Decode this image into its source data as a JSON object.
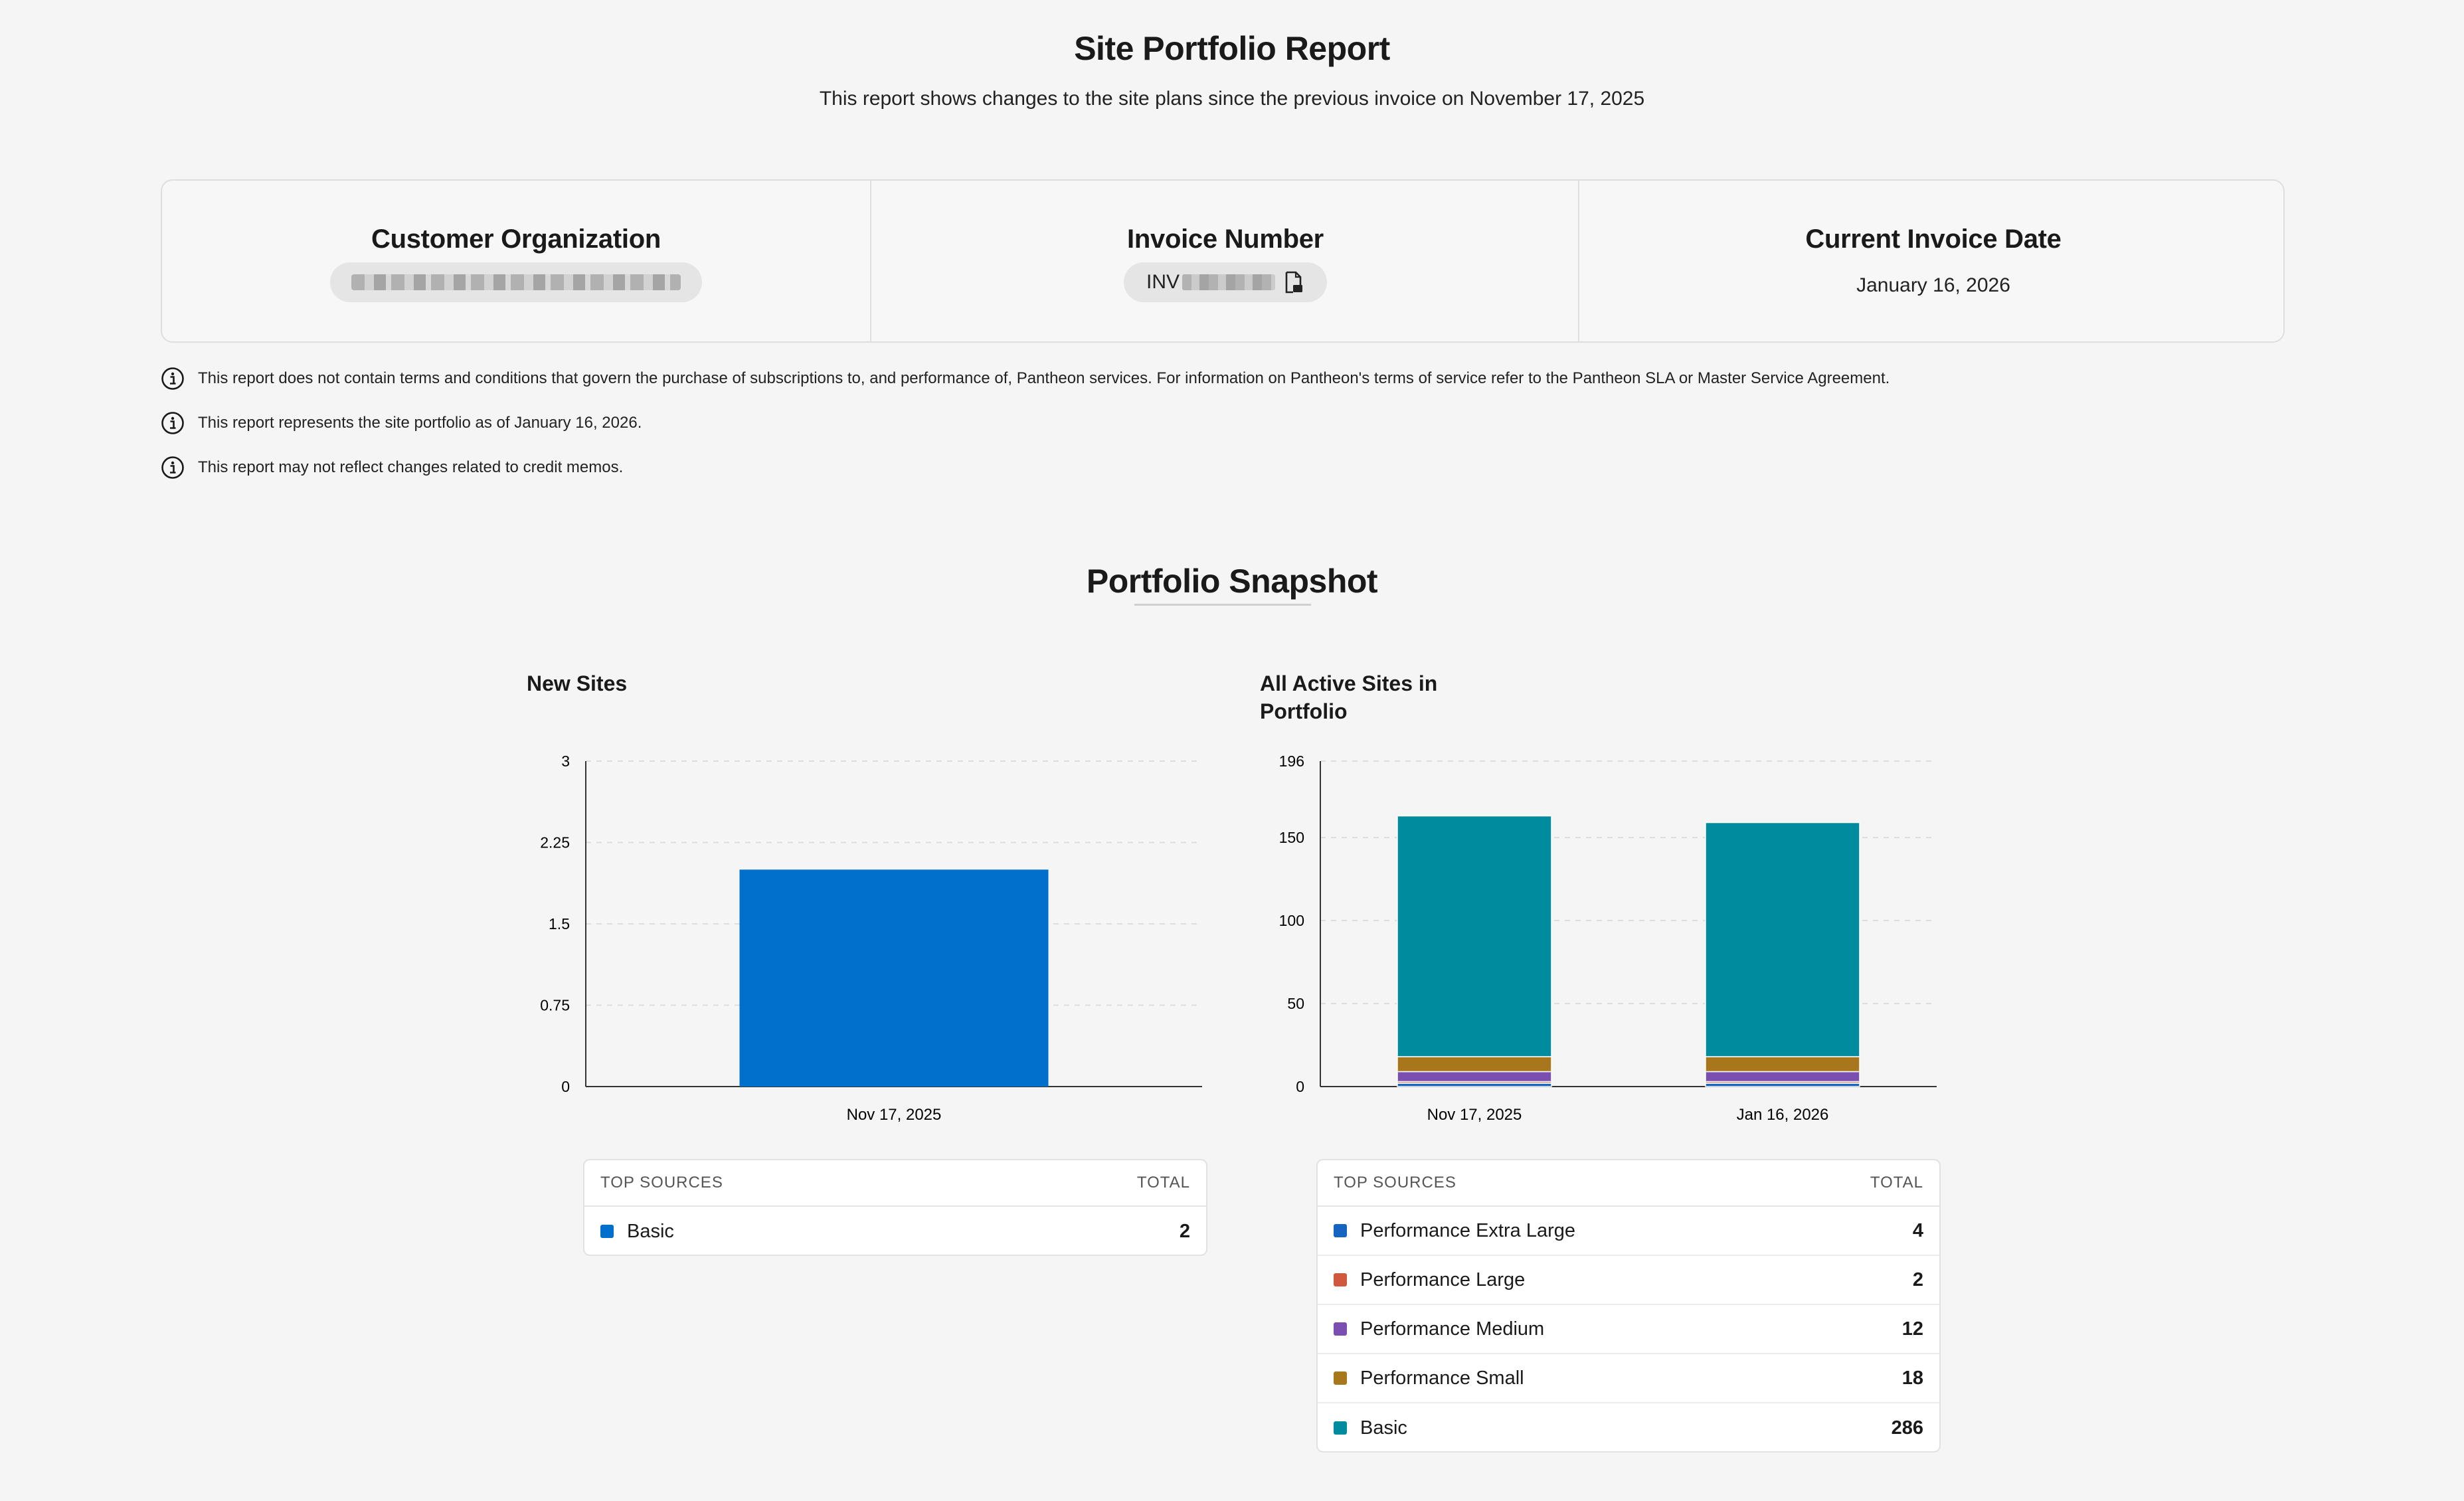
{
  "report": {
    "title": "Site Portfolio Report",
    "subtitle": "This report shows changes to the site plans since the previous invoice on November 17, 2025"
  },
  "info": {
    "org_label": "Customer Organization",
    "invoice_label": "Invoice Number",
    "invoice_prefix": "INV",
    "date_label": "Current Invoice Date",
    "date_value": "January 16, 2026"
  },
  "notices": [
    "This report does not contain terms and conditions that govern the purchase of subscriptions to, and performance of, Pantheon services. For information on Pantheon's terms of service refer to the Pantheon SLA or Master Service Agreement.",
    "This report represents the site portfolio as of January 16, 2026.",
    "This report may not reflect changes related to credit memos."
  ],
  "snapshot": {
    "title": "Portfolio Snapshot"
  },
  "new_sites": {
    "title": "New Sites",
    "header_sources": "TOP SOURCES",
    "header_total": "TOTAL",
    "rows": [
      {
        "name": "Basic",
        "total": "2",
        "color": "#0070cc"
      }
    ]
  },
  "active_sites": {
    "title_line1": "All Active Sites in",
    "title_line2": "Portfolio",
    "header_sources": "TOP SOURCES",
    "header_total": "TOTAL",
    "rows": [
      {
        "name": "Performance Extra Large",
        "total": "4",
        "color": "#1565c0"
      },
      {
        "name": "Performance Large",
        "total": "2",
        "color": "#d0583e"
      },
      {
        "name": "Performance Medium",
        "total": "12",
        "color": "#7b4fb0"
      },
      {
        "name": "Performance Small",
        "total": "18",
        "color": "#a8771c"
      },
      {
        "name": "Basic",
        "total": "286",
        "color": "#008c9e"
      }
    ]
  },
  "chart_data": [
    {
      "type": "bar",
      "title": "New Sites",
      "categories": [
        "Nov 17, 2025"
      ],
      "series": [
        {
          "name": "Basic",
          "values": [
            2
          ],
          "color": "#0070cc"
        }
      ],
      "yticks": [
        "0",
        "0.75",
        "1.5",
        "2.25",
        "3"
      ],
      "ylim": [
        0,
        3
      ],
      "grid": true
    },
    {
      "type": "bar",
      "stacked": true,
      "title": "All Active Sites in Portfolio",
      "categories": [
        "Nov 17, 2025",
        "Jan 16, 2026"
      ],
      "series": [
        {
          "name": "Performance Extra Large",
          "values": [
            2,
            2
          ],
          "color": "#1565c0"
        },
        {
          "name": "Performance Large",
          "values": [
            1,
            1
          ],
          "color": "#d0583e"
        },
        {
          "name": "Performance Medium",
          "values": [
            6,
            6
          ],
          "color": "#7b4fb0"
        },
        {
          "name": "Performance Small",
          "values": [
            9,
            9
          ],
          "color": "#a8771c"
        },
        {
          "name": "Basic",
          "values": [
            145,
            141
          ],
          "color": "#008c9e"
        }
      ],
      "yticks": [
        "0",
        "50",
        "100",
        "150",
        "196"
      ],
      "ylim": [
        0,
        196
      ],
      "grid": true
    }
  ]
}
